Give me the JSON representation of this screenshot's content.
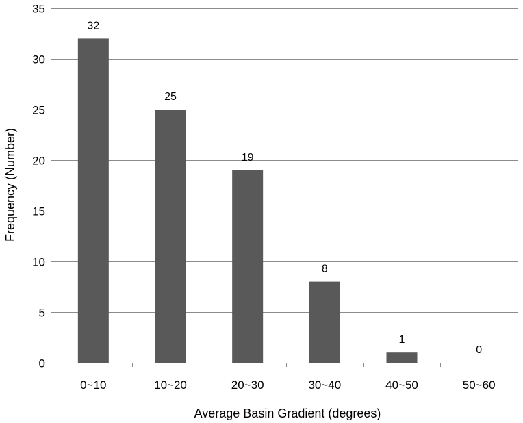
{
  "chart_data": {
    "type": "bar",
    "title": "",
    "xlabel": "Average Basin Gradient (degrees)",
    "ylabel": "Frequency (Number)",
    "categories": [
      "0~10",
      "10~20",
      "20~30",
      "30~40",
      "40~50",
      "50~60"
    ],
    "values": [
      32,
      25,
      19,
      8,
      1,
      0
    ],
    "data_labels": [
      "32",
      "25",
      "19",
      "8",
      "1",
      "0"
    ],
    "ylim": [
      0,
      35
    ],
    "yticks": [
      "0",
      "5",
      "10",
      "15",
      "20",
      "25",
      "30",
      "35"
    ],
    "grid": true,
    "legend": "none",
    "bar_color": "#595959",
    "grid_color": "#8c8c8c"
  }
}
